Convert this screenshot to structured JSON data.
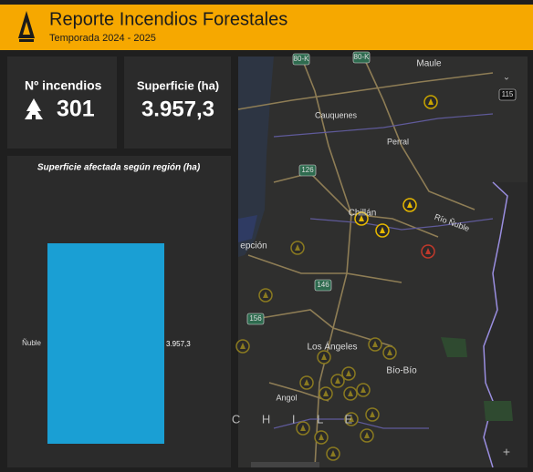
{
  "header": {
    "title": "Reporte Incendios Forestales",
    "subtitle": "Temporada 2024 - 2025"
  },
  "cards": [
    {
      "label": "Nº incendios",
      "value": "301"
    },
    {
      "label": "Superficie (ha)",
      "value": "3.957,3"
    }
  ],
  "chart_data": {
    "type": "bar",
    "orientation": "horizontal",
    "title": "Superficie afectada según región (ha)",
    "categories": [
      "Ñuble"
    ],
    "values": [
      3957.3
    ],
    "value_labels": [
      "3.957,3"
    ],
    "color": "#1a9fd4"
  },
  "map": {
    "labels": [
      "80-K",
      "80-K",
      "Maule",
      "115",
      "Cauquenes",
      "Perral",
      "126",
      "Chillán",
      "Río Ñuble",
      "epción",
      "146",
      "156",
      "Los Ángeles",
      "Bío-Bío",
      "Angol",
      "C H I L E"
    ]
  }
}
